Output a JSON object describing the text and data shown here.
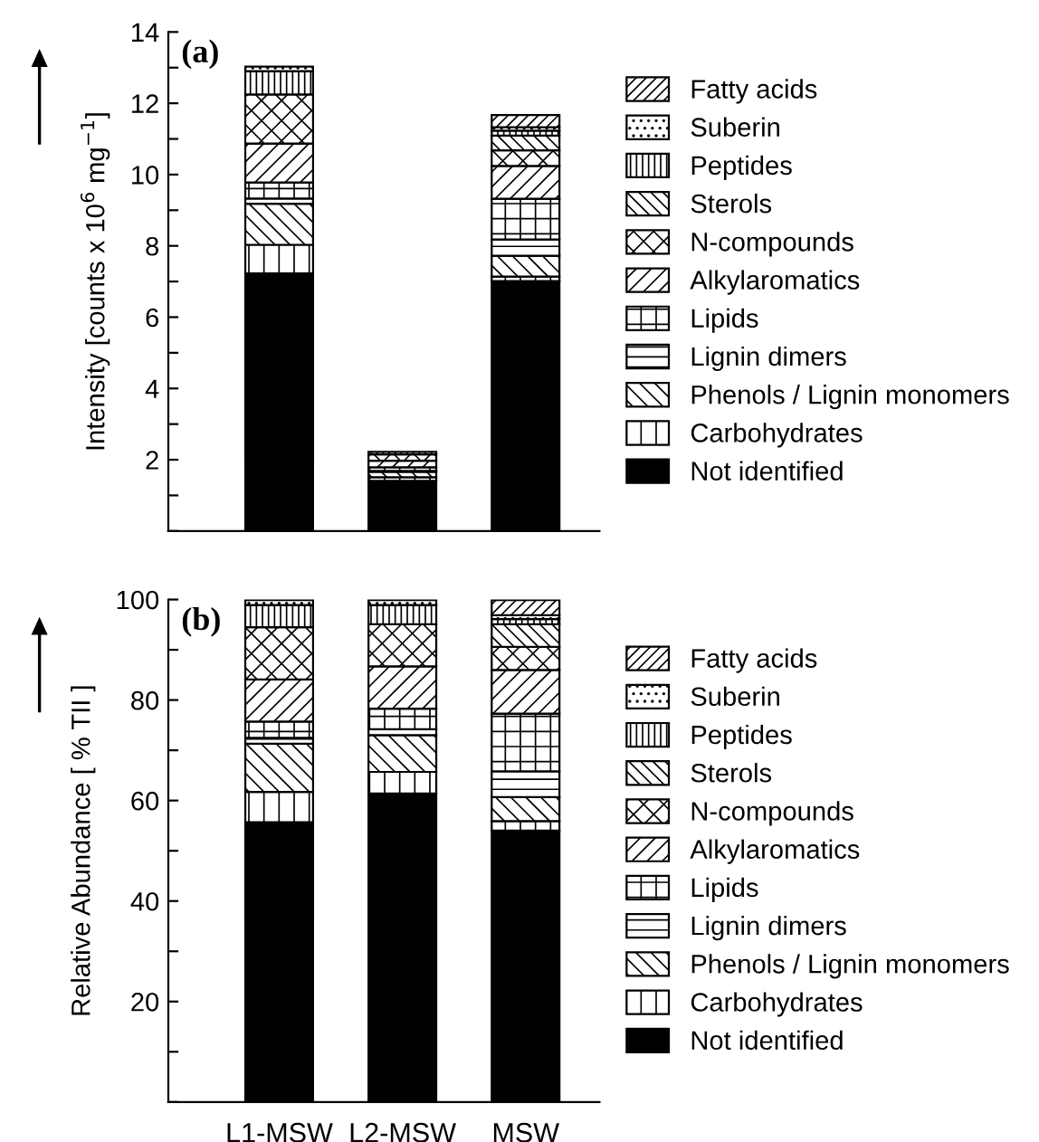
{
  "chart_data": [
    {
      "type": "bar",
      "title": "(a)",
      "ylabel": "Intensity [counts x 10$^{6}$ mg$^{−1}$]",
      "stacked": true,
      "legend": "right",
      "tick_labels": "y",
      "categories": [
        null,
        null,
        null
      ],
      "ylim": [
        0,
        14
      ],
      "yticks": [
        {
          "value": 0,
          "label": null
        },
        {
          "value": 1,
          "label": null
        },
        2,
        {
          "value": 3,
          "label": null
        },
        4,
        {
          "value": 5,
          "label": null
        },
        6,
        {
          "value": 7,
          "label": null
        },
        8,
        {
          "value": 9,
          "label": null
        },
        10,
        {
          "value": 11,
          "label": null
        },
        12,
        {
          "value": 13,
          "label": null
        },
        14
      ],
      "series": [
        {
          "name": "Not identified",
          "color": "#000000",
          "values": [
            7.23,
            1.41,
            7.01
          ]
        },
        {
          "name": "Carbohydrates",
          "color": "#000000",
          "values": [
            0.8,
            0.1,
            0.13
          ]
        },
        {
          "name": "Phenols / Lignin monomers",
          "color": "#000000",
          "values": [
            1.15,
            0.15,
            0.58
          ]
        },
        {
          "name": "Lignin dimers",
          "color": "#000000",
          "values": [
            0.15,
            0.03,
            0.46
          ]
        },
        {
          "name": "Lipids",
          "color": "#000000",
          "values": [
            0.45,
            0.1,
            1.14
          ]
        },
        {
          "name": "Alkylaromatics",
          "color": "#000000",
          "values": [
            1.09,
            0.18,
            0.92
          ]
        },
        {
          "name": "N-compounds",
          "color": "#000000",
          "values": [
            1.38,
            0.18,
            0.44
          ]
        },
        {
          "name": "Sterols",
          "color": "#000000",
          "values": [
            null,
            null,
            0.41
          ]
        },
        {
          "name": "Peptides",
          "color": "#000000",
          "values": [
            0.65,
            0.07,
            0.14
          ]
        },
        {
          "name": "Suberin",
          "color": "#000000",
          "values": [
            0.13,
            null,
            0.1
          ]
        },
        {
          "name": "Fatty acids",
          "color": "#000000",
          "values": [
            null,
            null,
            0.34
          ]
        }
      ]
    },
    {
      "type": "bar",
      "title": "(b)",
      "ylabel": "Relative Abundance [ % TII ]",
      "stacked": true,
      "legend": "right",
      "categories": [
        "L1-MSW",
        "L2-MSW",
        "MSW"
      ],
      "ylim": [
        0,
        100
      ],
      "yticks": [
        {
          "value": 0,
          "label": null
        },
        {
          "value": 10,
          "label": null
        },
        20,
        {
          "value": 30,
          "label": null
        },
        40,
        {
          "value": 50,
          "label": null
        },
        60,
        {
          "value": 70,
          "label": null
        },
        80,
        {
          "value": 90,
          "label": null
        },
        100
      ],
      "series": [
        {
          "name": "Not identified",
          "color": "#000000",
          "values": [
            55.7,
            61.4,
            54.0
          ]
        },
        {
          "name": "Carbohydrates",
          "color": "#000000",
          "values": [
            6.0,
            4.3,
            1.9
          ]
        },
        {
          "name": "Phenols / Lignin monomers",
          "color": "#000000",
          "values": [
            9.6,
            7.3,
            4.8
          ]
        },
        {
          "name": "Lignin dimers",
          "color": "#000000",
          "values": [
            1.2,
            1.2,
            5.1
          ]
        },
        {
          "name": "Lipids",
          "color": "#000000",
          "values": [
            3.2,
            4.1,
            11.5
          ]
        },
        {
          "name": "Alkylaromatics",
          "color": "#000000",
          "values": [
            8.4,
            8.4,
            8.7
          ]
        },
        {
          "name": "N-compounds",
          "color": "#000000",
          "values": [
            10.4,
            8.4,
            4.6
          ]
        },
        {
          "name": "Sterols",
          "color": "#000000",
          "values": [
            null,
            null,
            4.5
          ]
        },
        {
          "name": "Peptides",
          "color": "#000000",
          "values": [
            4.4,
            3.8,
            1.0
          ]
        },
        {
          "name": "Suberin",
          "color": "#000000",
          "values": [
            1.0,
            1.0,
            0.8
          ]
        },
        {
          "name": "Fatty acids",
          "color": "#000000",
          "values": [
            null,
            null,
            3.0
          ]
        }
      ]
    }
  ]
}
